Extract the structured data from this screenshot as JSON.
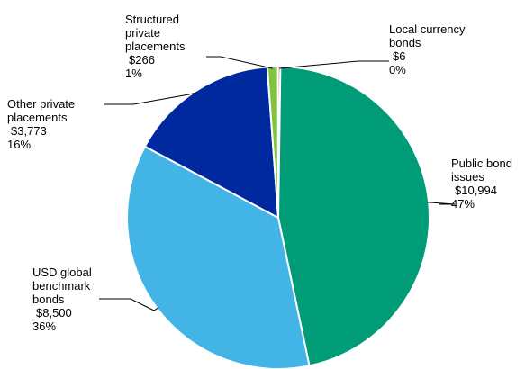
{
  "chart_data": {
    "type": "pie",
    "slices": [
      {
        "name_lines": [
          "Public bond",
          "issues"
        ],
        "value": "$10,994",
        "pct": "47%",
        "amount": 10994,
        "color": "#009B77"
      },
      {
        "name_lines": [
          "USD global",
          "benchmark",
          "bonds"
        ],
        "value": "$8,500",
        "pct": "36%",
        "amount": 8500,
        "color": "#42B4E6"
      },
      {
        "name_lines": [
          "Other private",
          "placements"
        ],
        "value": "$3,773",
        "pct": "16%",
        "amount": 3773,
        "color": "#0029A0"
      },
      {
        "name_lines": [
          "Structured",
          "private",
          "placements"
        ],
        "value": "$266",
        "pct": "1%",
        "amount": 266,
        "color": "#80C342"
      },
      {
        "name_lines": [
          "Local currency",
          "bonds"
        ],
        "value": "$6",
        "pct": "0%",
        "amount": 6,
        "color": "#7F7F7F"
      }
    ],
    "start": "12 o'clock",
    "direction": "clockwise"
  }
}
